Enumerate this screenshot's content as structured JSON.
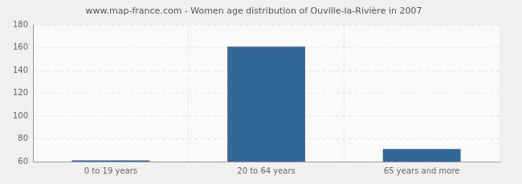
{
  "chart_data": {
    "type": "bar",
    "title": "www.map-france.com - Women age distribution of Ouville-la-Rivière in 2007",
    "categories": [
      "0 to 19 years",
      "20 to 64 years",
      "65 years and more"
    ],
    "values": [
      61,
      161,
      71
    ],
    "color": "#336699",
    "ylim": [
      60,
      180
    ],
    "yticks": [
      60,
      80,
      100,
      120,
      140,
      160,
      180
    ],
    "grid": true
  }
}
